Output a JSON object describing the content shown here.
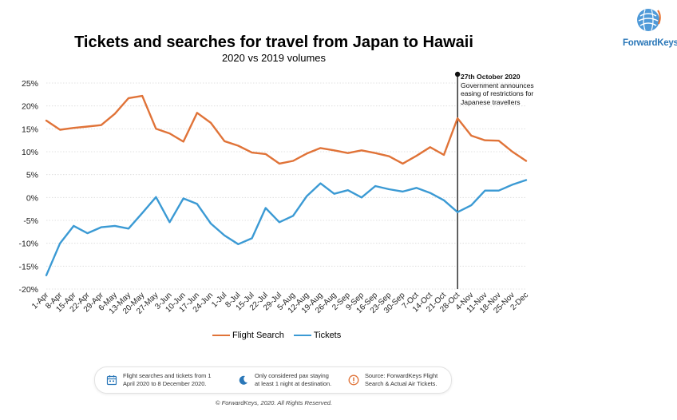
{
  "header": {
    "title": "Tickets and searches for travel from Japan to Hawaii",
    "subtitle": "2020 vs 2019 volumes"
  },
  "brand": {
    "name": "ForwardKeys",
    "color": "#2a77b8"
  },
  "annotation": {
    "date": "27th October 2020",
    "lines": [
      "Government announces",
      "easing of restrictions for",
      "Japanese travellers"
    ]
  },
  "chart_data": {
    "type": "line",
    "categories": [
      "1-Apr",
      "8-Apr",
      "15-Apr",
      "22-Apr",
      "29-Apr",
      "6-May",
      "13-May",
      "20-May",
      "27-May",
      "3-Jun",
      "10-Jun",
      "17-Jun",
      "24-Jun",
      "1-Jul",
      "8-Jul",
      "15-Jul",
      "22-Jul",
      "29-Jul",
      "5-Aug",
      "12-Aug",
      "19-Aug",
      "26-Aug",
      "2-Sep",
      "9-Sep",
      "16-Sep",
      "23-Sep",
      "30-Sep",
      "7-Oct",
      "14-Oct",
      "21-Oct",
      "28-Oct",
      "4-Nov",
      "11-Nov",
      "18-Nov",
      "25-Nov",
      "2-Dec"
    ],
    "y_ticks": [
      "25%",
      "20%",
      "15%",
      "10%",
      "5%",
      "0%",
      "-5%",
      "-10%",
      "-15%",
      "-20%"
    ],
    "ylim": [
      -20,
      25
    ],
    "series": [
      {
        "name": "Flight Search",
        "color": "#e07338",
        "values": [
          16.8,
          14.8,
          15.2,
          15.5,
          15.8,
          18.3,
          21.7,
          22.2,
          15.0,
          14.0,
          12.2,
          18.5,
          16.3,
          12.3,
          11.3,
          9.8,
          9.5,
          7.4,
          8.0,
          9.6,
          10.8,
          10.3,
          9.7,
          10.3,
          9.7,
          9.0,
          7.4,
          9.1,
          11.0,
          9.3,
          17.3,
          13.5,
          12.5,
          12.4,
          10.0,
          8.0
        ]
      },
      {
        "name": "Tickets",
        "color": "#3b9ad4",
        "values": [
          -17.0,
          -10.0,
          -6.2,
          -7.8,
          -6.5,
          -6.2,
          -6.8,
          -3.4,
          0.1,
          -5.4,
          -0.2,
          -1.4,
          -5.7,
          -8.3,
          -10.2,
          -8.9,
          -2.3,
          -5.4,
          -4.0,
          0.3,
          3.1,
          0.8,
          1.6,
          0.0,
          2.5,
          1.8,
          1.3,
          2.1,
          1.0,
          -0.6,
          -3.2,
          -1.7,
          1.5,
          1.5,
          2.8,
          3.8
        ]
      }
    ],
    "event_line_category": "28-Oct",
    "grid": true,
    "legend_position": "bottom"
  },
  "notes": [
    {
      "icon": "calendar-icon",
      "lines": [
        "Flight searches and tickets from 1",
        "April 2020 to 8 December 2020."
      ]
    },
    {
      "icon": "moon-icon",
      "lines": [
        "Only considered pax staying",
        "at least 1 night at destination."
      ]
    },
    {
      "icon": "exclamation-icon",
      "lines": [
        "Source: ForwardKeys Flight",
        "Search & Actual Air Tickets."
      ]
    }
  ],
  "footer": "© ForwardKeys, 2020. All Rights Reserved."
}
